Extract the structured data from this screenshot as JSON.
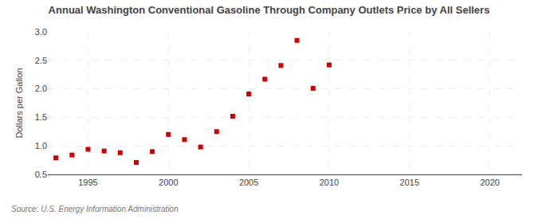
{
  "chart_data": {
    "type": "scatter",
    "title": "Annual Washington Conventional Gasoline Through Company Outlets Price by All Sellers",
    "ylabel": "Dollars per Gallon",
    "annotations": [
      "Source: U.S. Energy Information Administration"
    ],
    "x": [
      1993,
      1994,
      1995,
      1996,
      1997,
      1998,
      1999,
      2000,
      2001,
      2002,
      2003,
      2004,
      2005,
      2006,
      2007,
      2008,
      2009,
      2010
    ],
    "values": [
      0.79,
      0.84,
      0.94,
      0.91,
      0.88,
      0.71,
      0.9,
      1.2,
      1.11,
      0.98,
      1.25,
      1.52,
      1.91,
      2.17,
      2.41,
      2.85,
      2.01,
      2.42
    ],
    "color": "#cc0000",
    "marker": "square",
    "xlim": [
      1992.5,
      2022
    ],
    "xticks": [
      1995,
      2000,
      2005,
      2010,
      2015,
      2020
    ],
    "ylim": [
      0.5,
      3.0
    ],
    "yticks": [
      0.5,
      {
        "value": 1.0,
        "label": "1.0"
      },
      1.5,
      {
        "value": 2.0,
        "label": "2.0"
      },
      2.5,
      {
        "value": 3.0,
        "label": "3.0"
      }
    ],
    "grid": true
  }
}
